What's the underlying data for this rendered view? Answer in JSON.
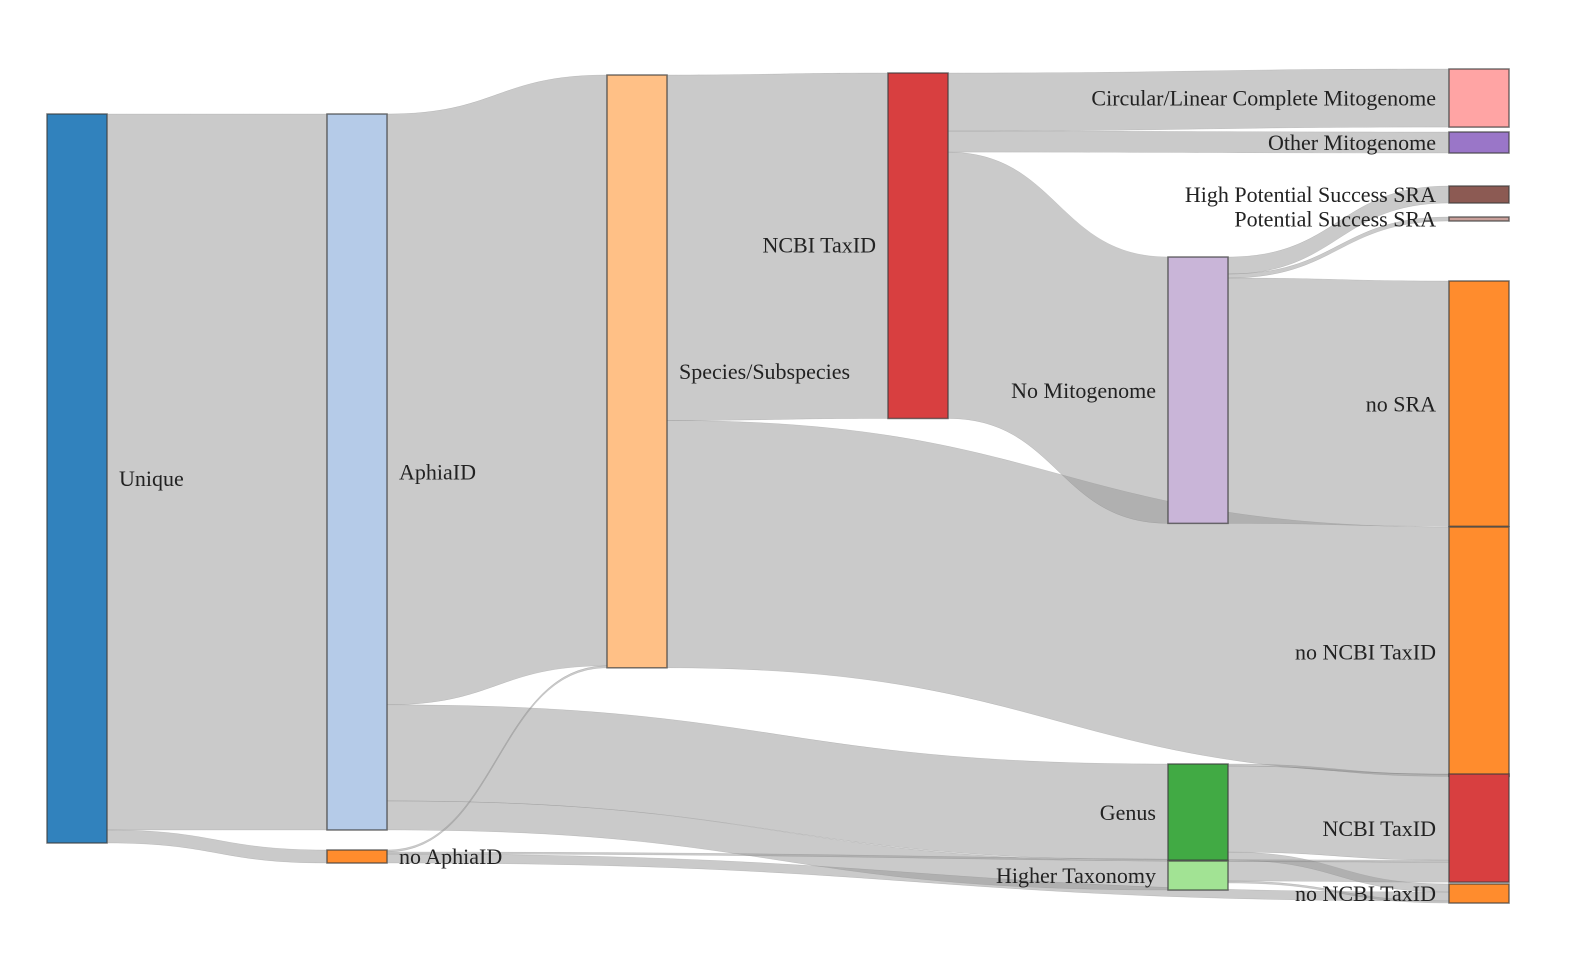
{
  "chart_data": {
    "type": "sankey",
    "nodes": [
      {
        "id": "unique",
        "label": "Unique",
        "color": "#3182bd",
        "column": 0
      },
      {
        "id": "aphia",
        "label": "AphiaID",
        "color": "#b5cbe8",
        "column": 1
      },
      {
        "id": "noaphia",
        "label": "no AphiaID",
        "color": "#ff8c2d",
        "column": 1
      },
      {
        "id": "species",
        "label": "Species/Subspecies",
        "color": "#ffc086",
        "column": 2
      },
      {
        "id": "ncbi",
        "label": "NCBI TaxID",
        "color": "#d83f40",
        "column": 3
      },
      {
        "id": "genus",
        "label": "Genus",
        "color": "#41aa44",
        "column": 4
      },
      {
        "id": "higher",
        "label": "Higher Taxonomy",
        "color": "#a2e394",
        "column": 4
      },
      {
        "id": "nomito",
        "label": "No Mitogenome",
        "color": "#c9b5d8",
        "column": 4
      },
      {
        "id": "circ",
        "label": "Circular/Linear Complete Mitogenome",
        "color": "#ffa4a4",
        "column": 5
      },
      {
        "id": "othermito",
        "label": "Other Mitogenome",
        "color": "#9a76c8",
        "column": 5
      },
      {
        "id": "hpsra",
        "label": "High Potential Success SRA",
        "color": "#8c5a53",
        "column": 5
      },
      {
        "id": "psra",
        "label": "Potential Success SRA",
        "color": "#c9a09b",
        "column": 5
      },
      {
        "id": "nosra",
        "label": "no SRA",
        "color": "#ff8c2d",
        "column": 5
      },
      {
        "id": "nonciR",
        "label": "no NCBI TaxID",
        "color": "#ff8c2d",
        "column": 5
      },
      {
        "id": "ncbiR",
        "label": "NCBI TaxID",
        "color": "#d83f40",
        "column": 5
      },
      {
        "id": "nonciR2",
        "label": "no NCBI TaxID",
        "color": "#ff8c2d",
        "column": 5
      }
    ],
    "links": [
      {
        "source": "unique",
        "target": "aphia",
        "value": 715
      },
      {
        "source": "unique",
        "target": "noaphia",
        "value": 13
      },
      {
        "source": "aphia",
        "target": "species",
        "value": 590
      },
      {
        "source": "aphia",
        "target": "genus",
        "value": 96
      },
      {
        "source": "aphia",
        "target": "higher",
        "value": 29
      },
      {
        "source": "noaphia",
        "target": "species",
        "value": 2
      },
      {
        "source": "noaphia",
        "target": "ncbiR",
        "value": 2
      },
      {
        "source": "noaphia",
        "target": "nonciR2",
        "value": 9
      },
      {
        "source": "species",
        "target": "ncbi",
        "value": 345
      },
      {
        "source": "species",
        "target": "nonciR",
        "value": 247
      },
      {
        "source": "ncbi",
        "target": "circ",
        "value": 58
      },
      {
        "source": "ncbi",
        "target": "othermito",
        "value": 21
      },
      {
        "source": "ncbi",
        "target": "nomito",
        "value": 266
      },
      {
        "source": "nomito",
        "target": "hpsra",
        "value": 17
      },
      {
        "source": "nomito",
        "target": "psra",
        "value": 4
      },
      {
        "source": "nomito",
        "target": "nosra",
        "value": 245
      },
      {
        "source": "genus",
        "target": "ncbiR",
        "value": 86
      },
      {
        "source": "genus",
        "target": "nonciR",
        "value": 2
      },
      {
        "source": "genus",
        "target": "nonciR2",
        "value": 8
      },
      {
        "source": "higher",
        "target": "ncbiR",
        "value": 20
      },
      {
        "source": "higher",
        "target": "nonciR2",
        "value": 2
      }
    ]
  }
}
